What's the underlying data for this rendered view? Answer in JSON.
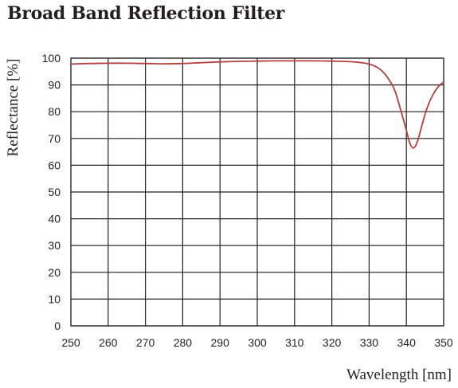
{
  "chart_data": {
    "type": "line",
    "title": "Broad Band Reflection Filter",
    "xlabel": "Wavelength [nm]",
    "ylabel": "Reflectance [%]",
    "xlim": [
      250,
      350
    ],
    "ylim": [
      0,
      100
    ],
    "x_ticks": [
      250,
      260,
      270,
      280,
      290,
      300,
      310,
      320,
      330,
      340,
      350
    ],
    "y_ticks": [
      0,
      10,
      20,
      30,
      40,
      50,
      60,
      70,
      80,
      90,
      100
    ],
    "grid": true,
    "line_color": "#b5413f",
    "series": [
      {
        "x": [
          250,
          255,
          260,
          265,
          270,
          275,
          280,
          285,
          290,
          295,
          300,
          305,
          310,
          315,
          320,
          325,
          328,
          330,
          332,
          334,
          336,
          337,
          338,
          339,
          340,
          341,
          342,
          343,
          344,
          345,
          346,
          347,
          348,
          349,
          350
        ],
        "y": [
          97.8,
          98.0,
          98.1,
          98.1,
          98.0,
          97.9,
          98.0,
          98.3,
          98.6,
          98.8,
          98.9,
          99.0,
          99.0,
          99.0,
          98.9,
          98.7,
          98.3,
          97.8,
          96.7,
          94.5,
          90.5,
          87.5,
          83.0,
          78.0,
          73.0,
          68.0,
          66.5,
          69.0,
          74.0,
          79.0,
          83.0,
          86.0,
          88.3,
          90.0,
          91.0
        ]
      }
    ]
  }
}
